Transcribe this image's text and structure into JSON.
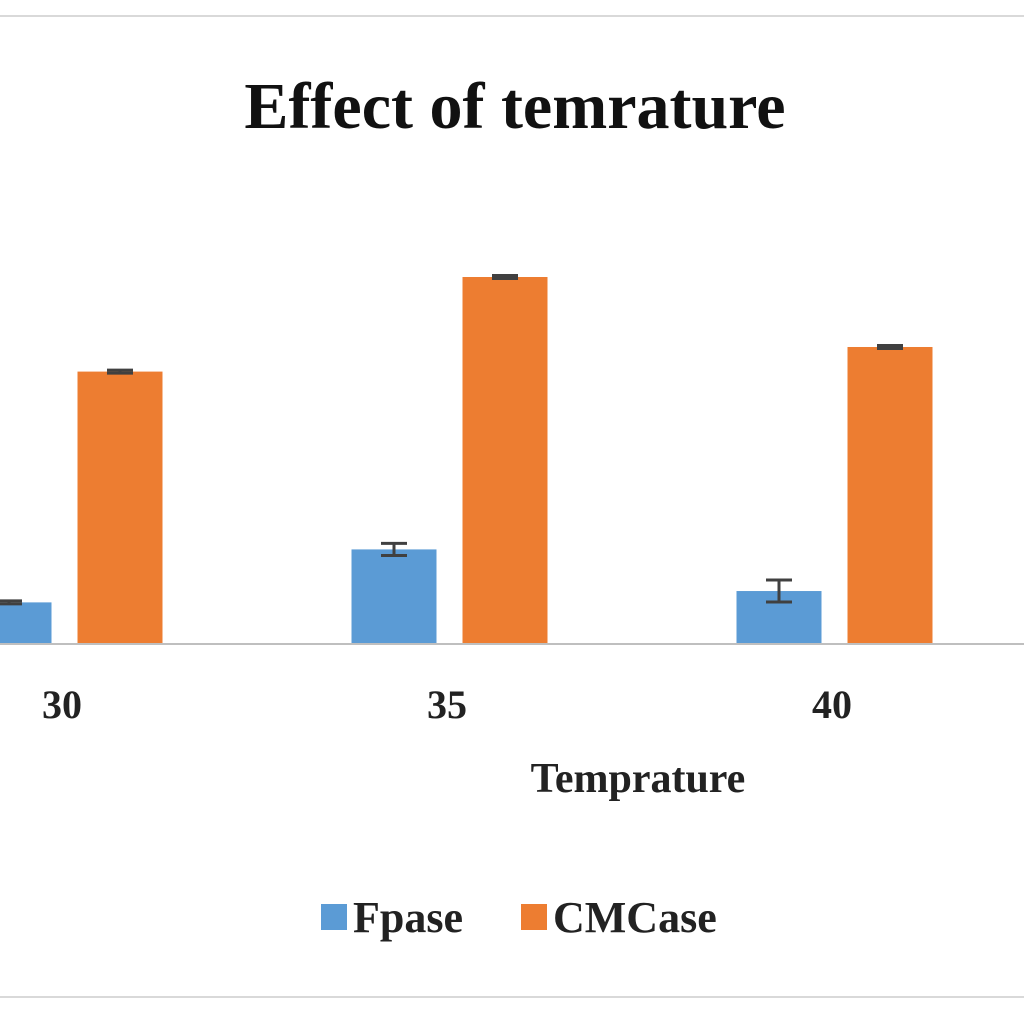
{
  "chart_data": {
    "type": "bar",
    "title": "Effect of temrature",
    "xlabel": "Temprature",
    "ylabel": "",
    "categories": [
      "30",
      "35",
      "40"
    ],
    "ylim": [
      0,
      1.0
    ],
    "series": [
      {
        "name": "Fpase",
        "color": "#5b9bd5",
        "values": [
          0.11,
          0.25,
          0.14
        ],
        "errors": [
          0.004,
          0.016,
          0.029
        ]
      },
      {
        "name": "CMCase",
        "color": "#ed7d31",
        "values": [
          0.72,
          0.97,
          0.785
        ],
        "errors": [
          0.004,
          0.004,
          0.004
        ]
      }
    ],
    "legend": "bottom",
    "grid": false,
    "error_bar_color": "#404040"
  }
}
